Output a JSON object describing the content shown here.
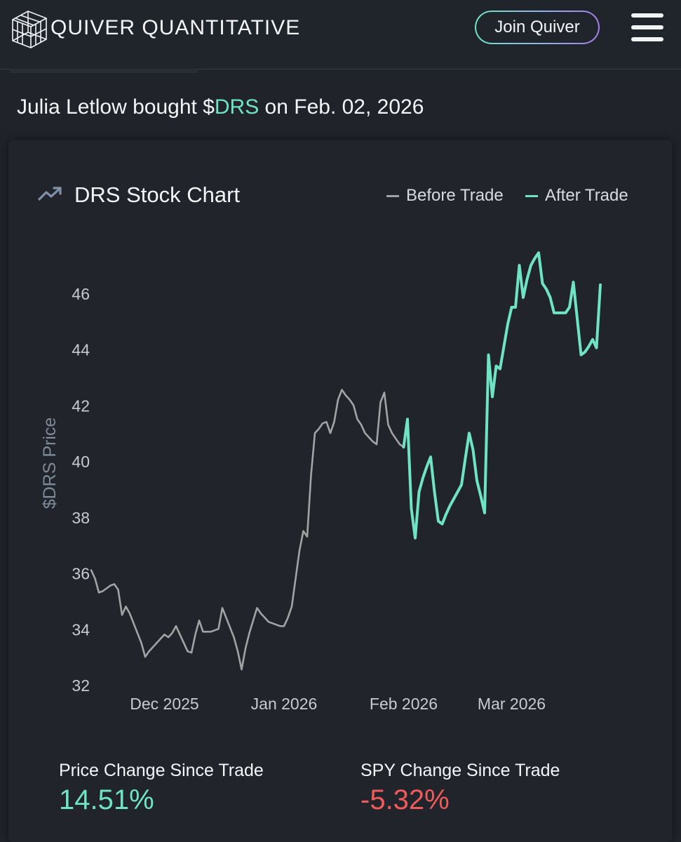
{
  "header": {
    "brand": "QUIVER QUANTITATIVE",
    "join_label": "Join Quiver",
    "logo_icon": "quiver-cube-logo-icon",
    "menu_icon": "hamburger-menu-icon"
  },
  "trade": {
    "prefix": "Julia Letlow bought $",
    "ticker": "DRS",
    "suffix": " on Feb. 02, 2026"
  },
  "chart_card": {
    "title": "DRS Stock Chart",
    "title_icon": "trending-up-icon",
    "legend_before": "Before Trade",
    "legend_after": "After Trade"
  },
  "colors": {
    "accent": "#6fe3c5",
    "before_line": "#a3a3a3",
    "negative": "#ef5a5a",
    "axis_label": "#7d8a99"
  },
  "chart_data": {
    "type": "line",
    "title": "DRS Stock Chart",
    "xlabel": "",
    "ylabel": "$DRS Price",
    "ylim": [
      32,
      47.5
    ],
    "yticks": [
      32,
      34,
      36,
      38,
      40,
      42,
      44,
      46
    ],
    "xticks": [
      {
        "label": "Dec 2025",
        "day": 19
      },
      {
        "label": "Jan 2026",
        "day": 50
      },
      {
        "label": "Feb 2026",
        "day": 81
      },
      {
        "label": "Mar 2026",
        "day": 109
      }
    ],
    "x_range_days": [
      0,
      140
    ],
    "trade_day": 81,
    "series": [
      {
        "name": "Before Trade",
        "color": "#a3a3a3",
        "points": [
          [
            0,
            36.1
          ],
          [
            1,
            35.8
          ],
          [
            2,
            35.3
          ],
          [
            3,
            35.35
          ],
          [
            4,
            35.45
          ],
          [
            5,
            35.55
          ],
          [
            6,
            35.6
          ],
          [
            6.5,
            35.5
          ],
          [
            7,
            35.4
          ],
          [
            8,
            34.5
          ],
          [
            9,
            34.8
          ],
          [
            10,
            34.55
          ],
          [
            11,
            34.2
          ],
          [
            12,
            33.85
          ],
          [
            13,
            33.5
          ],
          [
            14,
            33
          ],
          [
            15,
            33.2
          ],
          [
            16,
            33.35
          ],
          [
            17,
            33.5
          ],
          [
            18,
            33.65
          ],
          [
            19,
            33.8
          ],
          [
            20,
            33.7
          ],
          [
            21,
            33.85
          ],
          [
            22,
            34.1
          ],
          [
            23,
            33.8
          ],
          [
            24,
            33.5
          ],
          [
            25,
            33.2
          ],
          [
            26,
            33.15
          ],
          [
            27,
            33.8
          ],
          [
            28,
            34.3
          ],
          [
            29,
            33.9
          ],
          [
            30,
            33.9
          ],
          [
            31,
            33.9
          ],
          [
            32,
            33.95
          ],
          [
            33,
            34
          ],
          [
            34,
            34.75
          ],
          [
            35,
            34.4
          ],
          [
            36,
            34.05
          ],
          [
            37,
            33.7
          ],
          [
            38,
            33.2
          ],
          [
            39,
            32.55
          ],
          [
            40,
            33.3
          ],
          [
            41,
            33.85
          ],
          [
            42,
            34.3
          ],
          [
            43,
            34.75
          ],
          [
            44,
            34.55
          ],
          [
            45,
            34.4
          ],
          [
            46,
            34.25
          ],
          [
            47,
            34.2
          ],
          [
            48,
            34.15
          ],
          [
            49,
            34.1
          ],
          [
            50,
            34.1
          ],
          [
            51,
            34.4
          ],
          [
            52,
            34.8
          ],
          [
            53,
            35.8
          ],
          [
            54,
            36.8
          ],
          [
            55,
            37.5
          ],
          [
            56,
            37.3
          ],
          [
            57,
            39.5
          ],
          [
            58,
            41
          ],
          [
            59,
            41.15
          ],
          [
            60,
            41.35
          ],
          [
            61,
            41.4
          ],
          [
            62,
            41
          ],
          [
            63,
            41.4
          ],
          [
            64,
            42.2
          ],
          [
            65,
            42.55
          ],
          [
            66,
            42.35
          ],
          [
            67,
            42.2
          ],
          [
            68,
            42
          ],
          [
            69,
            41.5
          ],
          [
            70,
            41.3
          ],
          [
            71,
            41
          ],
          [
            72,
            40.85
          ],
          [
            73,
            40.7
          ],
          [
            74,
            40.6
          ],
          [
            75,
            42.1
          ],
          [
            76,
            42.45
          ],
          [
            77,
            41.3
          ],
          [
            78,
            41
          ],
          [
            79,
            40.8
          ],
          [
            80,
            40.6
          ],
          [
            81,
            40.5
          ]
        ]
      },
      {
        "name": "After Trade",
        "color": "#6fe3c5",
        "points": [
          [
            81,
            40.5
          ],
          [
            82,
            41.5
          ],
          [
            83,
            38.3
          ],
          [
            84,
            37.25
          ],
          [
            85,
            38.9
          ],
          [
            86,
            39.4
          ],
          [
            87,
            39.8
          ],
          [
            88,
            40.15
          ],
          [
            89,
            38.9
          ],
          [
            90,
            37.85
          ],
          [
            91,
            37.75
          ],
          [
            92,
            38.1
          ],
          [
            93,
            38.4
          ],
          [
            94,
            38.65
          ],
          [
            95,
            38.9
          ],
          [
            96,
            39.15
          ],
          [
            97,
            40.1
          ],
          [
            98,
            41
          ],
          [
            99,
            40.4
          ],
          [
            100,
            39.3
          ],
          [
            101,
            38.75
          ],
          [
            102,
            38.15
          ],
          [
            103,
            43.8
          ],
          [
            104,
            42.3
          ],
          [
            105,
            43.4
          ],
          [
            106,
            43.3
          ],
          [
            107,
            44.1
          ],
          [
            108,
            44.9
          ],
          [
            109,
            45.5
          ],
          [
            110,
            45.5
          ],
          [
            111,
            47
          ],
          [
            112,
            45.85
          ],
          [
            113,
            46.5
          ],
          [
            114,
            47
          ],
          [
            115,
            47.25
          ],
          [
            116,
            47.45
          ],
          [
            117,
            46.35
          ],
          [
            118,
            46.15
          ],
          [
            119,
            45.85
          ],
          [
            120,
            45.3
          ],
          [
            121,
            45.3
          ],
          [
            122,
            45.3
          ],
          [
            123,
            45.3
          ],
          [
            124,
            45.5
          ],
          [
            125,
            46.4
          ],
          [
            126,
            45.1
          ],
          [
            127,
            43.8
          ],
          [
            128,
            43.9
          ],
          [
            129,
            44.1
          ],
          [
            130,
            44.35
          ],
          [
            131,
            44.05
          ],
          [
            132,
            46.3
          ]
        ]
      }
    ]
  },
  "stats": {
    "price_change_label": "Price Change Since Trade",
    "price_change_value": "14.51%",
    "spy_change_label": "SPY Change Since Trade",
    "spy_change_value": "-5.32%"
  }
}
